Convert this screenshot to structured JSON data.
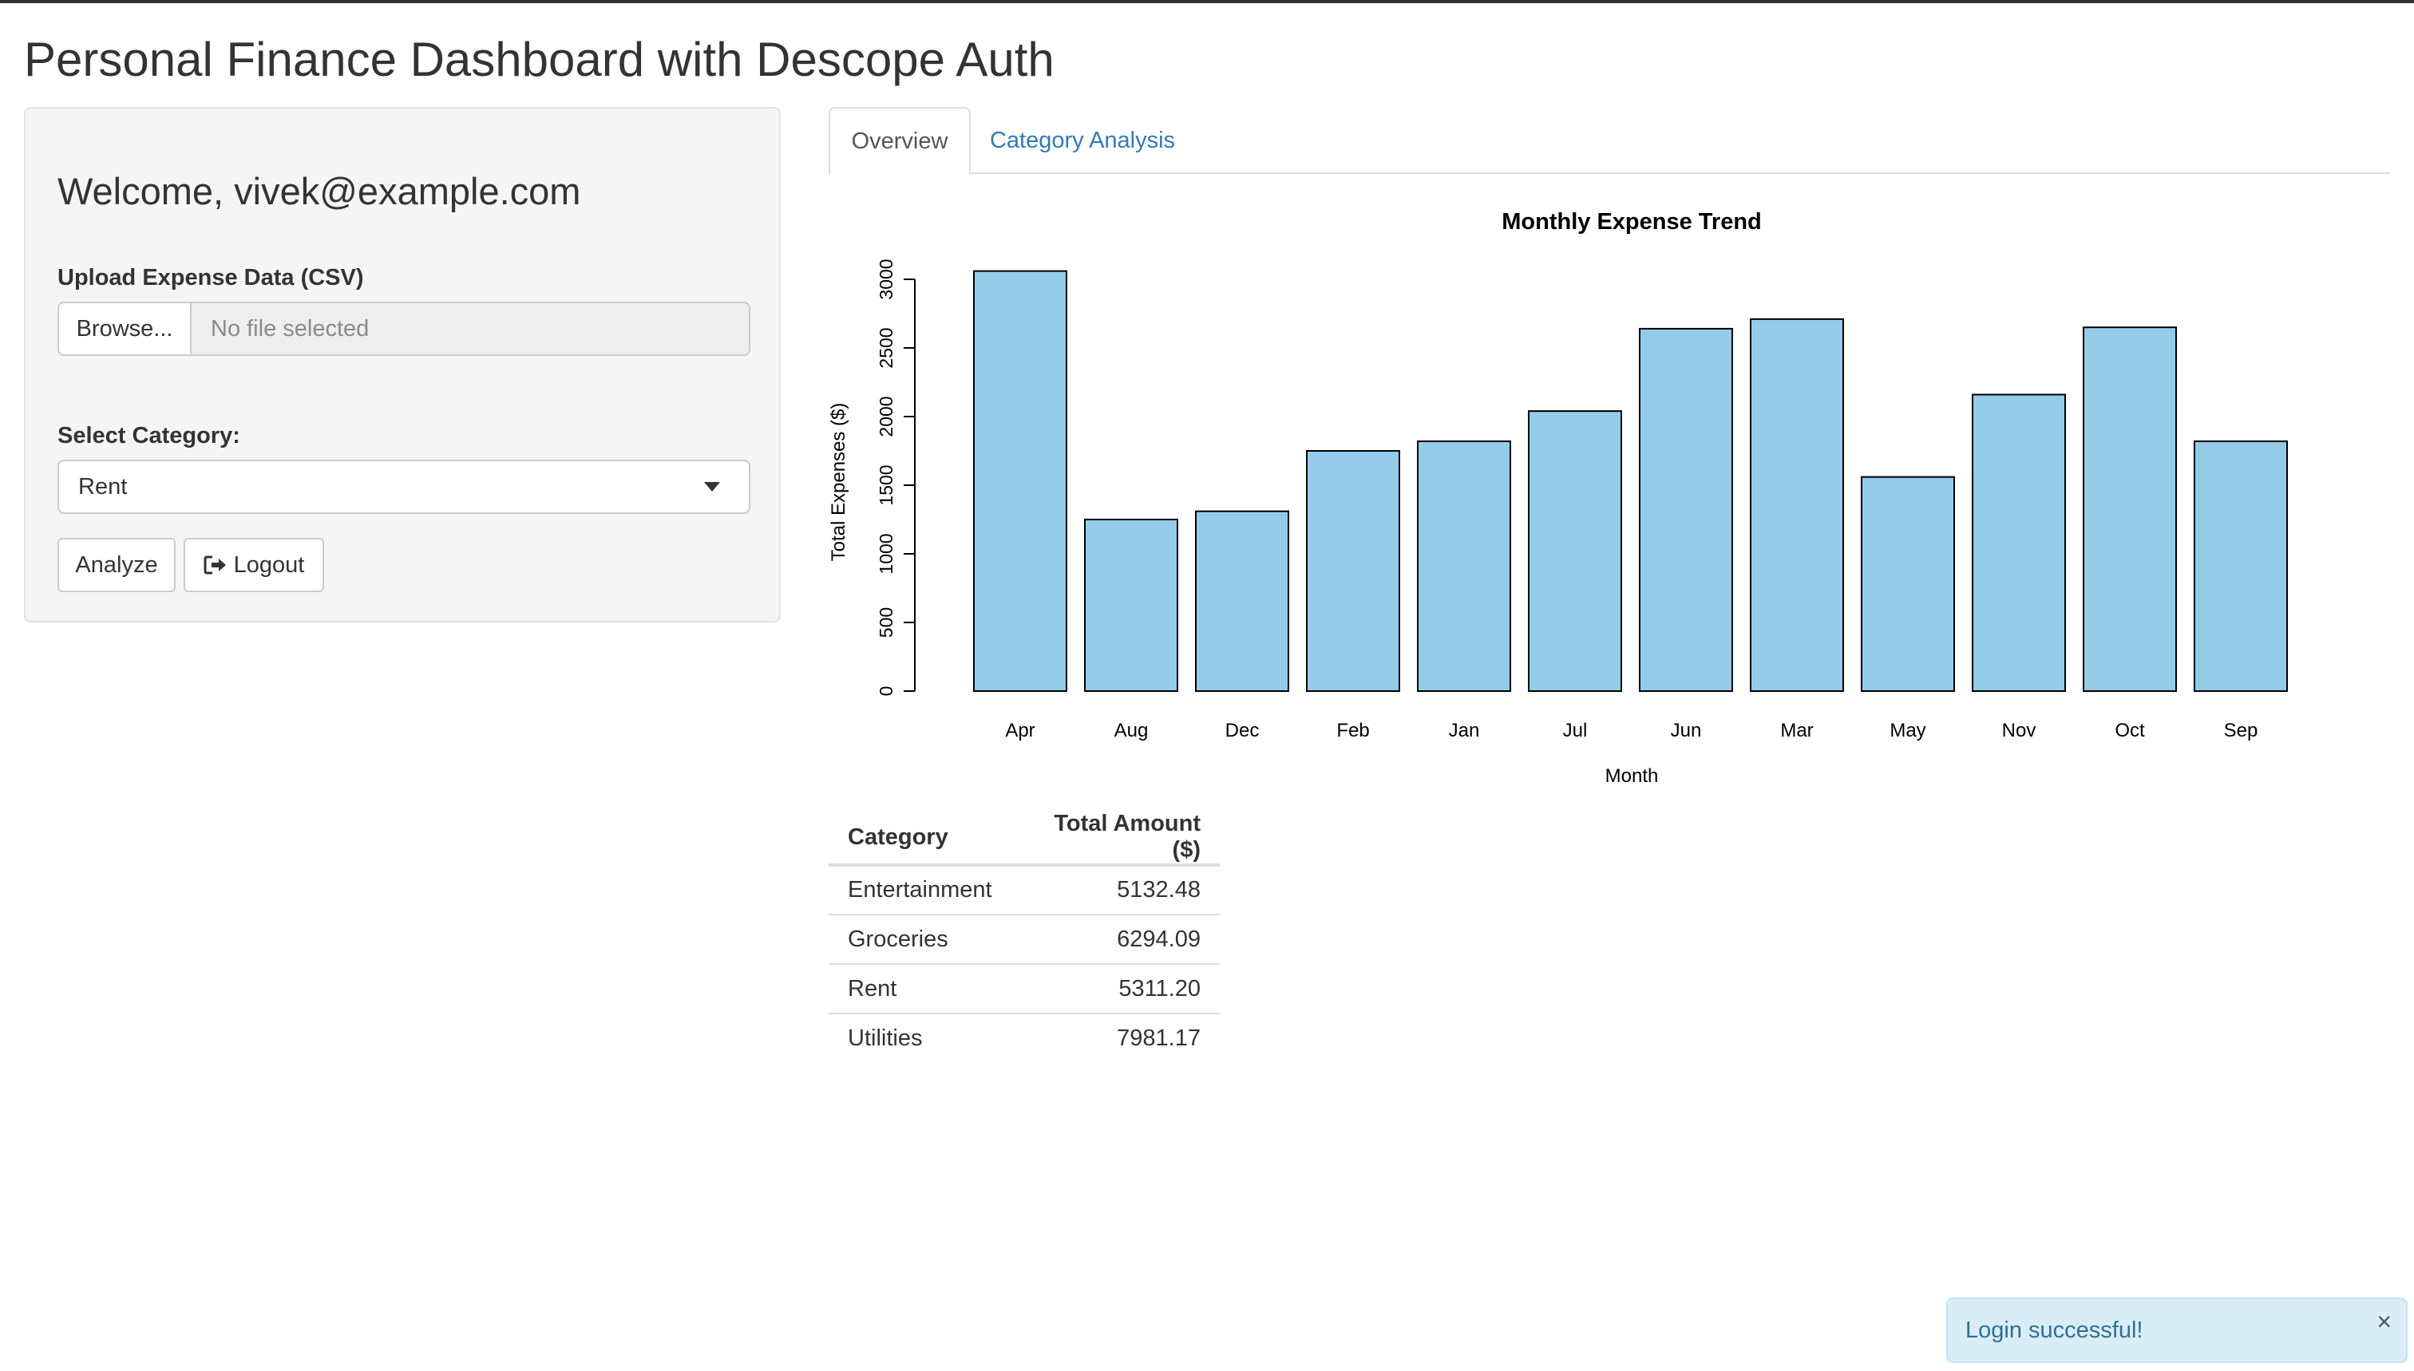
{
  "app": {
    "title": "Personal Finance Dashboard with Descope Auth"
  },
  "sidebar": {
    "welcome": "Welcome, vivek@example.com",
    "upload_label": "Upload Expense Data (CSV)",
    "browse_label": "Browse...",
    "file_placeholder": "No file selected",
    "category_label": "Select Category:",
    "category_value": "Rent",
    "analyze_label": "Analyze",
    "logout_label": "Logout"
  },
  "tabs": [
    {
      "label": "Overview",
      "active": true
    },
    {
      "label": "Category Analysis",
      "active": false
    }
  ],
  "chart_data": {
    "type": "bar",
    "title": "Monthly Expense Trend",
    "xlabel": "Month",
    "ylabel": "Total Expenses ($)",
    "categories": [
      "Apr",
      "Aug",
      "Dec",
      "Feb",
      "Jan",
      "Jul",
      "Jun",
      "Mar",
      "May",
      "Nov",
      "Oct",
      "Sep"
    ],
    "values": [
      3060,
      1250,
      1310,
      1750,
      1820,
      2040,
      2640,
      2710,
      1560,
      2160,
      2650,
      1820
    ],
    "yticks": [
      0,
      500,
      1000,
      1500,
      2000,
      2500,
      3000
    ],
    "ylim": [
      0,
      3060
    ],
    "bar_color": "#94cbe8",
    "grid": false
  },
  "table": {
    "headers": [
      "Category",
      "Total Amount ($)"
    ],
    "rows": [
      [
        "Entertainment",
        "5132.48"
      ],
      [
        "Groceries",
        "6294.09"
      ],
      [
        "Rent",
        "5311.20"
      ],
      [
        "Utilities",
        "7981.17"
      ]
    ]
  },
  "notification": {
    "text": "Login successful!",
    "close": "×"
  }
}
